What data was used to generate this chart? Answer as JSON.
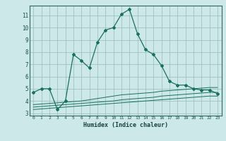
{
  "xlabel": "Humidex (Indice chaleur)",
  "bg_color": "#cce8e8",
  "grid_color": "#99bbbb",
  "line_color": "#1a7060",
  "xlim": [
    -0.5,
    23.5
  ],
  "ylim": [
    2.8,
    11.8
  ],
  "xticks": [
    0,
    1,
    2,
    3,
    4,
    5,
    6,
    7,
    8,
    9,
    10,
    11,
    12,
    13,
    14,
    15,
    16,
    17,
    18,
    19,
    20,
    21,
    22,
    23
  ],
  "yticks": [
    3,
    4,
    5,
    6,
    7,
    8,
    9,
    10,
    11
  ],
  "main_x": [
    0,
    1,
    2,
    3,
    4,
    5,
    6,
    7,
    8,
    9,
    10,
    11,
    12,
    13,
    14,
    15,
    16,
    17,
    18,
    19,
    20,
    21,
    22,
    23
  ],
  "main_y": [
    4.7,
    5.0,
    5.0,
    3.3,
    4.0,
    7.8,
    7.3,
    6.7,
    8.8,
    9.8,
    10.0,
    11.1,
    11.5,
    9.5,
    8.2,
    7.8,
    6.9,
    5.6,
    5.3,
    5.3,
    5.0,
    4.9,
    4.9,
    4.6
  ],
  "ref1_x": [
    0,
    1,
    2,
    3,
    4,
    5,
    6,
    7,
    8,
    9,
    10,
    11,
    12,
    13,
    14,
    15,
    16,
    17,
    18,
    19,
    20,
    21,
    22,
    23
  ],
  "ref1_y": [
    3.3,
    3.35,
    3.4,
    3.45,
    3.5,
    3.55,
    3.6,
    3.65,
    3.7,
    3.75,
    3.8,
    3.85,
    3.9,
    3.95,
    4.0,
    4.05,
    4.1,
    4.15,
    4.2,
    4.25,
    4.3,
    4.35,
    4.4,
    4.4
  ],
  "ref2_x": [
    0,
    1,
    2,
    3,
    4,
    5,
    6,
    7,
    8,
    9,
    10,
    11,
    12,
    13,
    14,
    15,
    16,
    17,
    18,
    19,
    20,
    21,
    22,
    23
  ],
  "ref2_y": [
    3.5,
    3.55,
    3.6,
    3.65,
    3.7,
    3.75,
    3.8,
    3.85,
    3.9,
    3.95,
    4.0,
    4.1,
    4.15,
    4.2,
    4.25,
    4.3,
    4.4,
    4.45,
    4.5,
    4.55,
    4.6,
    4.65,
    4.7,
    4.7
  ],
  "ref3_x": [
    0,
    1,
    2,
    3,
    4,
    5,
    6,
    7,
    8,
    9,
    10,
    11,
    12,
    13,
    14,
    15,
    16,
    17,
    18,
    19,
    20,
    21,
    22,
    23
  ],
  "ref3_y": [
    3.7,
    3.75,
    3.8,
    3.85,
    3.9,
    3.95,
    4.0,
    4.1,
    4.2,
    4.3,
    4.4,
    4.5,
    4.55,
    4.6,
    4.65,
    4.7,
    4.8,
    4.85,
    4.9,
    4.95,
    5.0,
    5.05,
    5.1,
    5.1
  ]
}
